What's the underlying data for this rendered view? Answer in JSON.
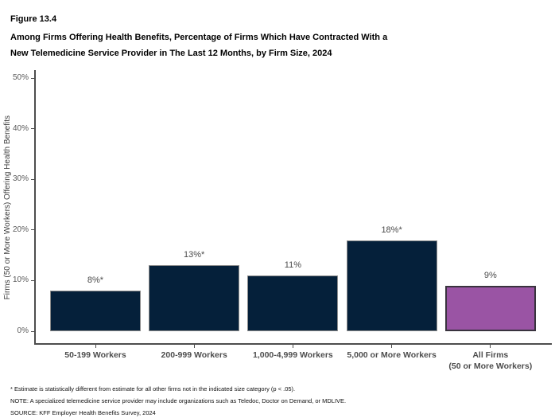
{
  "header": {
    "figure_label": "Figure 13.4",
    "title_line1": "Among Firms Offering Health Benefits, Percentage of Firms Which Have Contracted With a",
    "title_line2": "New Telemedicine Service Provider in The Last 12 Months, by Firm Size, 2024"
  },
  "chart_data": {
    "type": "bar",
    "title": "Among Firms Offering Health Benefits, Percentage of Firms Which Have Contracted With a New Telemedicine Service Provider in The Last 12 Months, by Firm Size, 2024",
    "categories": [
      "50-199 Workers",
      "200-999 Workers",
      "1,000-4,999 Workers",
      "5,000 or More Workers",
      "All Firms\n(50 or More Workers)"
    ],
    "values": [
      8,
      13,
      11,
      18,
      9
    ],
    "value_labels": [
      "8%*",
      "13%*",
      "11%",
      "18%*",
      "9%"
    ],
    "xlabel": "",
    "ylabel": "Firms (50 or More Workers) Offering Health Benefits",
    "ylim": [
      0,
      50
    ],
    "yticks": [
      0,
      10,
      20,
      30,
      40,
      50
    ],
    "ytick_labels": [
      "0%",
      "10%",
      "20%",
      "30%",
      "40%",
      "50%"
    ],
    "grid": false,
    "legend": "none",
    "bar_colors": [
      "#05203A",
      "#05203A",
      "#05203A",
      "#05203A",
      "#9A54A4"
    ],
    "bar_border_colors": [
      "#8C8C8C",
      "#8C8C8C",
      "#8C8C8C",
      "#8C8C8C",
      "#39333E"
    ]
  },
  "footnotes": [
    "* Estimate is statistically different from estimate for all other firms not in the indicated size category (p < .05).",
    "NOTE: A specialized telemedicine service provider may include organizations such as Teledoc, Doctor on Demand, or MDLIVE.",
    "SOURCE: KFF Employer Health Benefits Survey, 2024"
  ]
}
